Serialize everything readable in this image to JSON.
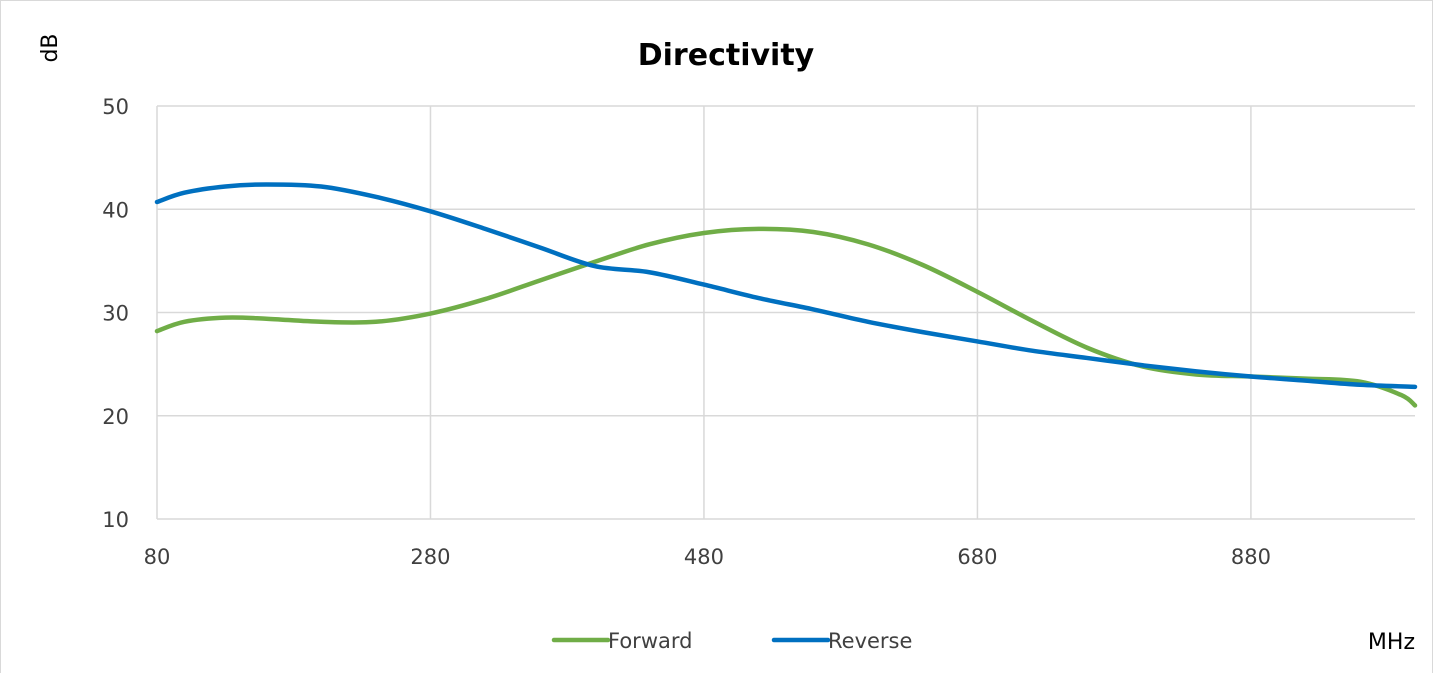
{
  "chart_data": {
    "type": "line",
    "title": "Directivity",
    "ylabel": "dB",
    "xlabel": "MHz",
    "xlim": [
      80,
      1000
    ],
    "ylim": [
      10,
      50
    ],
    "xticks": [
      80,
      280,
      480,
      680,
      880
    ],
    "yticks": [
      10,
      20,
      30,
      40,
      50
    ],
    "grid": true,
    "legend_position": "bottom",
    "series": [
      {
        "name": "Forward",
        "color": "#70ad47",
        "x": [
          80,
          100,
          130,
          160,
          200,
          240,
          280,
          320,
          360,
          400,
          440,
          480,
          520,
          560,
          600,
          640,
          680,
          720,
          760,
          800,
          840,
          880,
          920,
          960,
          990,
          1000
        ],
        "y": [
          28.2,
          29.1,
          29.5,
          29.4,
          29.1,
          29.1,
          29.9,
          31.3,
          33.1,
          34.9,
          36.6,
          37.7,
          38.1,
          37.8,
          36.6,
          34.6,
          32.0,
          29.2,
          26.6,
          24.8,
          24.0,
          23.8,
          23.6,
          23.3,
          22.0,
          21.0
        ]
      },
      {
        "name": "Reverse",
        "color": "#0070c0",
        "x": [
          80,
          100,
          130,
          160,
          200,
          240,
          280,
          320,
          360,
          400,
          440,
          480,
          520,
          560,
          600,
          640,
          680,
          720,
          760,
          800,
          840,
          880,
          920,
          960,
          1000
        ],
        "y": [
          40.7,
          41.6,
          42.2,
          42.4,
          42.2,
          41.2,
          39.8,
          38.1,
          36.3,
          34.5,
          33.9,
          32.7,
          31.4,
          30.3,
          29.1,
          28.1,
          27.2,
          26.3,
          25.6,
          24.9,
          24.3,
          23.8,
          23.4,
          23.0,
          22.8
        ]
      }
    ]
  }
}
